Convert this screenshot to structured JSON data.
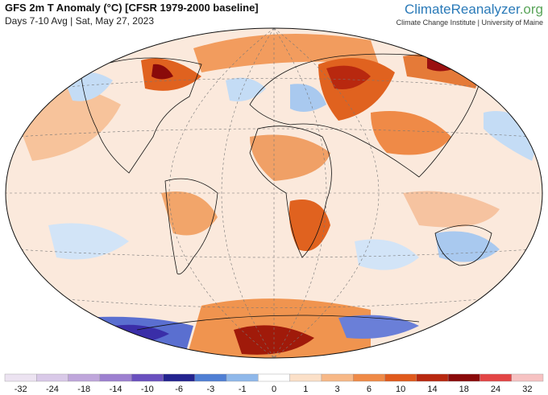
{
  "header": {
    "title": "GFS 2m T Anomaly (°C) [CFSR 1979-2000 baseline]",
    "subtitle": "Days 7-10 Avg | Sat, May 27, 2023"
  },
  "logo": {
    "name": "ClimateReanalyzer",
    "suffix": ".org",
    "tagline": "Climate Change Institute | University of Maine"
  },
  "colorbar": {
    "labels": [
      -32,
      -24,
      -18,
      -14,
      -10,
      -6,
      -3,
      -1,
      0,
      1,
      3,
      6,
      10,
      14,
      18,
      24,
      32
    ],
    "colors": [
      "#ece3f1",
      "#d9c9e8",
      "#bfa6db",
      "#9d80d0",
      "#6a50bf",
      "#23238f",
      "#4f7fd4",
      "#8fb8ea",
      "#ffffff",
      "#fbe0c8",
      "#f7b887",
      "#ef8a47",
      "#e05a1c",
      "#b8280f",
      "#8a0a0a",
      "#e34545",
      "#f6c2c2"
    ]
  }
}
